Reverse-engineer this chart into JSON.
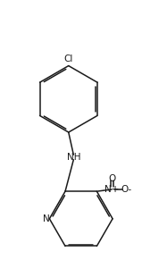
{
  "bg_color": "#ffffff",
  "line_color": "#1a1a1a",
  "figsize": [
    1.87,
    3.1
  ],
  "dpi": 100,
  "font_size_label": 7.5,
  "Cl_label": "Cl",
  "NH_label": "NH",
  "N_pyridine_label": "N",
  "nitro_N_label": "N",
  "nitro_O1_label": "O",
  "nitro_O2_label": "O"
}
